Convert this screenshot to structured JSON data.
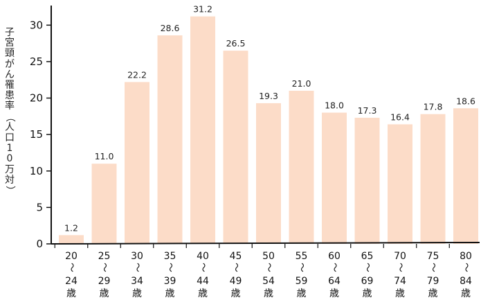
{
  "chart_data": {
    "type": "bar",
    "ylabel": "子宮頸がん罹患率（人口10万対）",
    "categories": [
      {
        "from": "20",
        "sep": "〜",
        "to": "24",
        "unit": "歳"
      },
      {
        "from": "25",
        "sep": "〜",
        "to": "29",
        "unit": "歳"
      },
      {
        "from": "30",
        "sep": "〜",
        "to": "34",
        "unit": "歳"
      },
      {
        "from": "35",
        "sep": "〜",
        "to": "39",
        "unit": "歳"
      },
      {
        "from": "40",
        "sep": "〜",
        "to": "44",
        "unit": "歳"
      },
      {
        "from": "45",
        "sep": "〜",
        "to": "49",
        "unit": "歳"
      },
      {
        "from": "50",
        "sep": "〜",
        "to": "54",
        "unit": "歳"
      },
      {
        "from": "55",
        "sep": "〜",
        "to": "59",
        "unit": "歳"
      },
      {
        "from": "60",
        "sep": "〜",
        "to": "64",
        "unit": "歳"
      },
      {
        "from": "65",
        "sep": "〜",
        "to": "69",
        "unit": "歳"
      },
      {
        "from": "70",
        "sep": "〜",
        "to": "74",
        "unit": "歳"
      },
      {
        "from": "75",
        "sep": "〜",
        "to": "79",
        "unit": "歳"
      },
      {
        "from": "80",
        "sep": "〜",
        "to": "84",
        "unit": "歳"
      }
    ],
    "values": [
      1.2,
      11.0,
      22.2,
      28.6,
      31.2,
      26.5,
      19.3,
      21.0,
      18.0,
      17.3,
      16.4,
      17.8,
      18.6
    ],
    "value_labels": [
      "1.2",
      "11.0",
      "22.2",
      "28.6",
      "31.2",
      "26.5",
      "19.3",
      "21.0",
      "18.0",
      "17.3",
      "16.4",
      "17.8",
      "18.6"
    ],
    "yticks": [
      0,
      5,
      10,
      15,
      20,
      25,
      30
    ],
    "ylim": [
      0,
      32.5
    ],
    "grid": false,
    "legend": "none",
    "bar_color": "#fcdcc8",
    "axis_color": "#111111"
  }
}
